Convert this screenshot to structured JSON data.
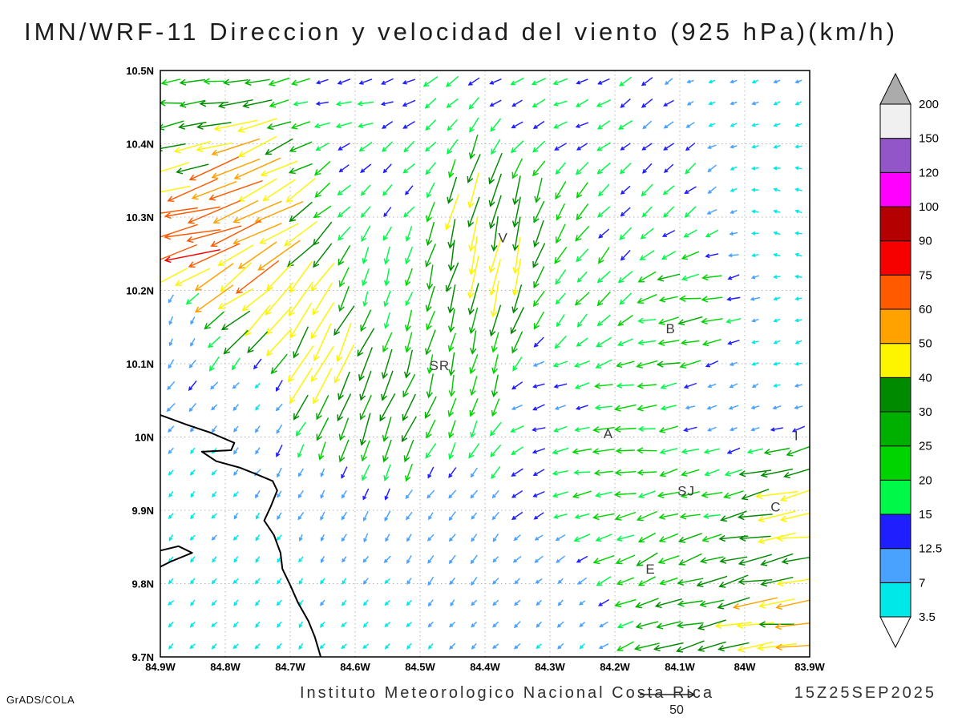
{
  "title": "IMN/WRF-11 Direccion y velocidad del viento (925 hPa)(km/h)",
  "footer": {
    "institute": "Instituto Meteorologico Nacional Costa Rica",
    "timestamp": "15Z25SEP2025",
    "credit": "GrADS/COLA",
    "reference_vector_label": "50"
  },
  "chart_data": {
    "type": "vector_field",
    "title": "IMN/WRF-11 Direccion y velocidad del viento (925 hPa)(km/h)",
    "model": "IMN/WRF-11",
    "variable": "Direccion y velocidad del viento",
    "level": "925 hPa",
    "units": "km/h",
    "valid_time": "15Z25SEP2025",
    "lon_range": [
      -84.9,
      -83.9
    ],
    "lat_range": [
      9.7,
      10.5
    ],
    "grid_style": "dotted",
    "x_ticks": [
      {
        "v": -84.9,
        "label": "84.9W"
      },
      {
        "v": -84.8,
        "label": "84.8W"
      },
      {
        "v": -84.7,
        "label": "84.7W"
      },
      {
        "v": -84.6,
        "label": "84.6W"
      },
      {
        "v": -84.5,
        "label": "84.5W"
      },
      {
        "v": -84.4,
        "label": "84.4W"
      },
      {
        "v": -84.3,
        "label": "84.3W"
      },
      {
        "v": -84.2,
        "label": "84.2W"
      },
      {
        "v": -84.1,
        "label": "84.1W"
      },
      {
        "v": -84.0,
        "label": "84W"
      },
      {
        "v": -83.9,
        "label": "83.9W"
      }
    ],
    "y_ticks": [
      {
        "v": 10.5,
        "label": "10.5N"
      },
      {
        "v": 10.4,
        "label": "10.4N"
      },
      {
        "v": 10.3,
        "label": "10.3N"
      },
      {
        "v": 10.2,
        "label": "10.2N"
      },
      {
        "v": 10.1,
        "label": "10.1N"
      },
      {
        "v": 10.0,
        "label": "10N"
      },
      {
        "v": 9.9,
        "label": "9.9N"
      },
      {
        "v": 9.8,
        "label": "9.8N"
      },
      {
        "v": 9.7,
        "label": "9.7N"
      }
    ],
    "speed_levels": [
      3.5,
      7,
      12.5,
      15,
      20,
      25,
      30,
      40,
      50,
      60,
      75,
      90,
      100,
      120,
      150,
      200
    ],
    "speed_level_labels": [
      "3.5",
      "7",
      "12.5",
      "15",
      "20",
      "25",
      "30",
      "40",
      "50",
      "60",
      "75",
      "90",
      "100",
      "120",
      "150",
      "200"
    ],
    "level_colors": {
      "below": "#ffffff",
      "cells": [
        "#00e8e8",
        "#4aa2ff",
        "#1e1eff",
        "#00f948",
        "#00d400",
        "#00b000",
        "#008a00",
        "#fdf400",
        "#ffa200",
        "#ff5a00",
        "#f60000",
        "#b40000",
        "#ff00ff",
        "#9256c8",
        "#f0f0f0"
      ],
      "above": "#ababab"
    },
    "slow_arrow_color": "#9b5fd6",
    "reference_speed": 50,
    "arrow_grid": {
      "nx": 30,
      "ny": 27
    },
    "control_vectors": [
      [
        -84.88,
        10.48,
        -26,
        -2
      ],
      [
        -84.6,
        10.47,
        -15,
        -4
      ],
      [
        -84.3,
        10.47,
        -13,
        -6
      ],
      [
        -84.0,
        10.46,
        -6,
        -2
      ],
      [
        -83.92,
        10.3,
        -4,
        1
      ],
      [
        -84.88,
        10.37,
        -38,
        -8
      ],
      [
        -84.85,
        10.29,
        -80,
        -18
      ],
      [
        -84.83,
        10.31,
        -60,
        -25
      ],
      [
        -84.78,
        10.22,
        -42,
        -32
      ],
      [
        -84.72,
        10.18,
        -32,
        -36
      ],
      [
        -84.66,
        10.1,
        -20,
        -40
      ],
      [
        -84.6,
        10.04,
        -12,
        -30
      ],
      [
        -84.55,
        10.22,
        -6,
        -18
      ],
      [
        -84.4,
        10.28,
        -8,
        -38
      ],
      [
        -84.4,
        10.22,
        -10,
        -40
      ],
      [
        -84.42,
        10.1,
        -6,
        -24
      ],
      [
        -84.25,
        10.2,
        -12,
        -14
      ],
      [
        -84.15,
        10.35,
        -12,
        -10
      ],
      [
        -84.1,
        10.15,
        -24,
        -4
      ],
      [
        -83.95,
        10.1,
        -6,
        -2
      ],
      [
        -84.02,
        10.05,
        -8,
        -4
      ],
      [
        -84.3,
        10.05,
        -13,
        -4
      ],
      [
        -84.2,
        10.0,
        -22,
        -2
      ],
      [
        -84.08,
        9.93,
        -20,
        -5
      ],
      [
        -83.93,
        9.9,
        -42,
        -8
      ],
      [
        -84.13,
        9.82,
        -22,
        -10
      ],
      [
        -84.05,
        9.78,
        -32,
        -8
      ],
      [
        -83.95,
        9.74,
        -46,
        -5
      ],
      [
        -84.45,
        9.85,
        -6,
        -8
      ],
      [
        -84.65,
        9.9,
        -4,
        -8
      ],
      [
        -84.82,
        9.95,
        -4,
        -5
      ],
      [
        -84.88,
        10.15,
        -4,
        -8
      ],
      [
        -84.75,
        10.05,
        -5,
        -6
      ],
      [
        -84.85,
        9.75,
        -3,
        -3
      ],
      [
        -84.72,
        9.82,
        -3,
        -4
      ],
      [
        -84.55,
        9.73,
        -4,
        -4
      ],
      [
        -84.3,
        9.75,
        -6,
        -5
      ],
      [
        -84.9,
        9.9,
        -3,
        -4
      ],
      [
        -84.55,
        10.35,
        -10,
        -10
      ]
    ],
    "stations": [
      {
        "label": "V",
        "lon": -84.372,
        "lat": 10.272
      },
      {
        "label": "B",
        "lon": -84.114,
        "lat": 10.148
      },
      {
        "label": "SR",
        "lon": -84.47,
        "lat": 10.098
      },
      {
        "label": "A",
        "lon": -84.21,
        "lat": 10.005
      },
      {
        "label": "SJ",
        "lon": -84.09,
        "lat": 9.927
      },
      {
        "label": "C",
        "lon": -83.952,
        "lat": 9.905
      },
      {
        "label": "E",
        "lon": -84.145,
        "lat": 9.82
      },
      {
        "label": "I",
        "lon": -83.92,
        "lat": 10.002
      }
    ],
    "coastline": [
      [
        [
          -84.9,
          10.03
        ],
        [
          -84.86,
          10.017
        ],
        [
          -84.823,
          10.006
        ],
        [
          -84.786,
          9.992
        ],
        [
          -84.791,
          9.982
        ],
        [
          -84.836,
          9.98
        ],
        [
          -84.814,
          9.967
        ],
        [
          -84.777,
          9.958
        ],
        [
          -84.754,
          9.95
        ],
        [
          -84.727,
          9.94
        ],
        [
          -84.72,
          9.927
        ],
        [
          -84.73,
          9.905
        ],
        [
          -84.74,
          9.886
        ],
        [
          -84.725,
          9.866
        ],
        [
          -84.715,
          9.842
        ],
        [
          -84.712,
          9.82
        ],
        [
          -84.7,
          9.798
        ],
        [
          -84.688,
          9.774
        ],
        [
          -84.672,
          9.749
        ],
        [
          -84.662,
          9.727
        ],
        [
          -84.653,
          9.7
        ]
      ],
      [
        [
          -84.9,
          9.845
        ],
        [
          -84.872,
          9.851
        ],
        [
          -84.851,
          9.842
        ],
        [
          -84.884,
          9.83
        ],
        [
          -84.9,
          9.823
        ]
      ]
    ]
  }
}
